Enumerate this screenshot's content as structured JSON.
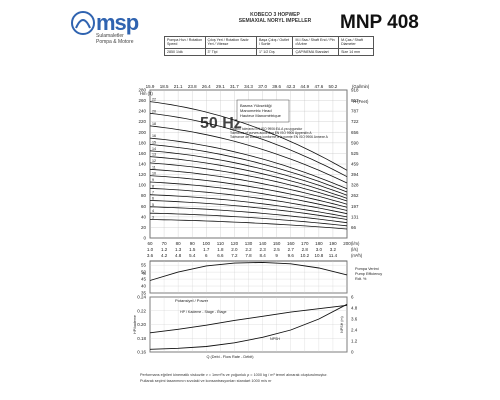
{
  "header": {
    "brand": "msp",
    "brand_sub": [
      "Sulamaletler",
      "Pompa & Motore"
    ],
    "series_line1": "KOBECO 3 HOPWEP",
    "series_line2": "SEMIAXIAL NORYL IMPELLER",
    "model": "MNP 408"
  },
  "spec_table": [
    [
      "Pompa Hızı / Rotation Speed",
      "Çıkış Yeri / Rotation Sadır Yeri / Vitesse",
      "Başa Çıkış / Outlet / Sortie",
      "M.I.Ssa / Shaft End / Pin d'Arbre",
      "M.Ças / Shaft Diameter"
    ],
    [
      "2850 1/dk",
      "3\" Tipi",
      "1\" 1/2 Dış",
      "ÇAP/NEMA Standart",
      "Size 14 mm"
    ]
  ],
  "chart_data": [
    {
      "type": "line",
      "name": "head-curves",
      "title": "50 Hz",
      "note": [
        "Basma Yüksekliği",
        "Manometric Head",
        "Hauteur Manométrique"
      ],
      "standards_note": [
        "Eğilerin toleransı EN ISO 9906:EA.A ya uygundur",
        "Tolerance of curves according EN ISO 9906 Appendix A",
        "Tolérance de courbes conforme à la norme EN ISO 9906 Annexe A"
      ],
      "ylabel_left": "Hm (ft)",
      "ylabel_right": "H (Feet)",
      "xlabel": "(Gal/min)",
      "top_ticks": [
        "15.9",
        "18.5",
        "21.1",
        "23.8",
        "26.4",
        "29.1",
        "31.7",
        "34.3",
        "37.0",
        "39.6",
        "42.3",
        "44.9",
        "47.6",
        "50.2"
      ],
      "right_ticks": [
        "918",
        "853",
        "787",
        "722",
        "656",
        "590",
        "525",
        "459",
        "394",
        "328",
        "262",
        "197",
        "131",
        "66"
      ],
      "left_ticks": [
        "0",
        "20",
        "40",
        "60",
        "80",
        "100",
        "120",
        "140",
        "160",
        "180",
        "200",
        "220",
        "240",
        "260",
        "280"
      ],
      "x": [
        60,
        70,
        80,
        90,
        100,
        110,
        120,
        130,
        140,
        150,
        160,
        170,
        180,
        190
      ],
      "xlim": [
        60,
        200
      ],
      "ylim": [
        0,
        280
      ],
      "curve_labels": [
        "22",
        "20",
        "18",
        "16",
        "15",
        "14",
        "13",
        "12",
        "11",
        "10",
        "9",
        "8",
        "7",
        "6",
        "5",
        "4",
        "3"
      ],
      "series": [
        {
          "name": "22",
          "start": 258,
          "end": 128
        },
        {
          "name": "20",
          "start": 236,
          "end": 116
        },
        {
          "name": "18",
          "start": 212,
          "end": 104
        },
        {
          "name": "16",
          "start": 189,
          "end": 93
        },
        {
          "name": "15",
          "start": 177,
          "end": 87
        },
        {
          "name": "14",
          "start": 165,
          "end": 81
        },
        {
          "name": "13",
          "start": 154,
          "end": 75
        },
        {
          "name": "12",
          "start": 142,
          "end": 70
        },
        {
          "name": "11",
          "start": 130,
          "end": 64
        },
        {
          "name": "10",
          "start": 118,
          "end": 58
        },
        {
          "name": "9",
          "start": 106,
          "end": 52
        },
        {
          "name": "8",
          "start": 94,
          "end": 46
        },
        {
          "name": "7",
          "start": 82,
          "end": 40
        },
        {
          "name": "6",
          "start": 71,
          "end": 35
        },
        {
          "name": "5",
          "start": 59,
          "end": 29
        },
        {
          "name": "4",
          "start": 47,
          "end": 23
        },
        {
          "name": "3",
          "start": 35,
          "end": 17
        }
      ]
    },
    {
      "type": "line",
      "name": "efficiency",
      "x_ticks_lmin": [
        "60",
        "70",
        "80",
        "90",
        "100",
        "110",
        "120",
        "130",
        "140",
        "150",
        "160",
        "170",
        "180",
        "190",
        "200"
      ],
      "x_ticks_m3s": [
        "1.0",
        "1.2",
        "1.3",
        "1.5",
        "1.7",
        "1.8",
        "2.0",
        "2.2",
        "2.3",
        "2.5",
        "2.7",
        "2.8",
        "3.0",
        "3.2"
      ],
      "x_ticks_m3h": [
        "3.6",
        "4.2",
        "4.8",
        "5.4",
        "6",
        "6.6",
        "7.2",
        "7.8",
        "8.4",
        "9",
        "9.6",
        "10.2",
        "10.8",
        "11.4"
      ],
      "unit_lmin": "(l/m)",
      "unit_m3s": "(l/s)",
      "unit_m3h": "(m³/h)",
      "legend": [
        "Pompa Verimi",
        "Pump Efficiency",
        "Rdt. %"
      ],
      "ylabel": "%",
      "y_ticks": [
        "35",
        "40",
        "45",
        "50",
        "55"
      ],
      "ylim": [
        35,
        58
      ],
      "x": [
        60,
        80,
        100,
        120,
        140,
        160,
        180,
        200
      ],
      "values": [
        44,
        50,
        54.5,
        56.5,
        57,
        56,
        53,
        48
      ]
    },
    {
      "type": "line",
      "name": "power-npsh",
      "title": "Potansiyel / Power",
      "series_label": "HP / Kademe - Stage - Étage",
      "npsh_label": "NPSH",
      "xlabel": "Q (Debi - Flow Rate - Débit)",
      "ylabel_left": "HP/kademe",
      "ylabel_right": "NPSH (m)",
      "left_ticks": [
        "0.16",
        "0.18",
        "0.20",
        "0.22",
        "0.24"
      ],
      "right_ticks": [
        "0",
        "1.2",
        "2.4",
        "3.6",
        "4.8",
        "6"
      ],
      "power_x": [
        60,
        80,
        100,
        120,
        140,
        160,
        180,
        200
      ],
      "power_values": [
        0.188,
        0.193,
        0.199,
        0.206,
        0.212,
        0.218,
        0.223,
        0.228
      ],
      "npsh_x": [
        60,
        80,
        100,
        120,
        140,
        160,
        180,
        200
      ],
      "npsh_values": [
        0.3,
        0.4,
        0.6,
        1.0,
        1.6,
        2.4,
        3.6,
        5.2
      ]
    }
  ],
  "footer": {
    "line1": "Performans eğrileri kinematik viskozite ν = 1mm²/s ve yoğunluk ρ = 1000 kg / m³ temel alınarak oluşturulmuştur.",
    "line2": "Pullarak seçimi tasarımının sıvıdaki ve konsantrasyonları standart 1000 m/s nr"
  }
}
